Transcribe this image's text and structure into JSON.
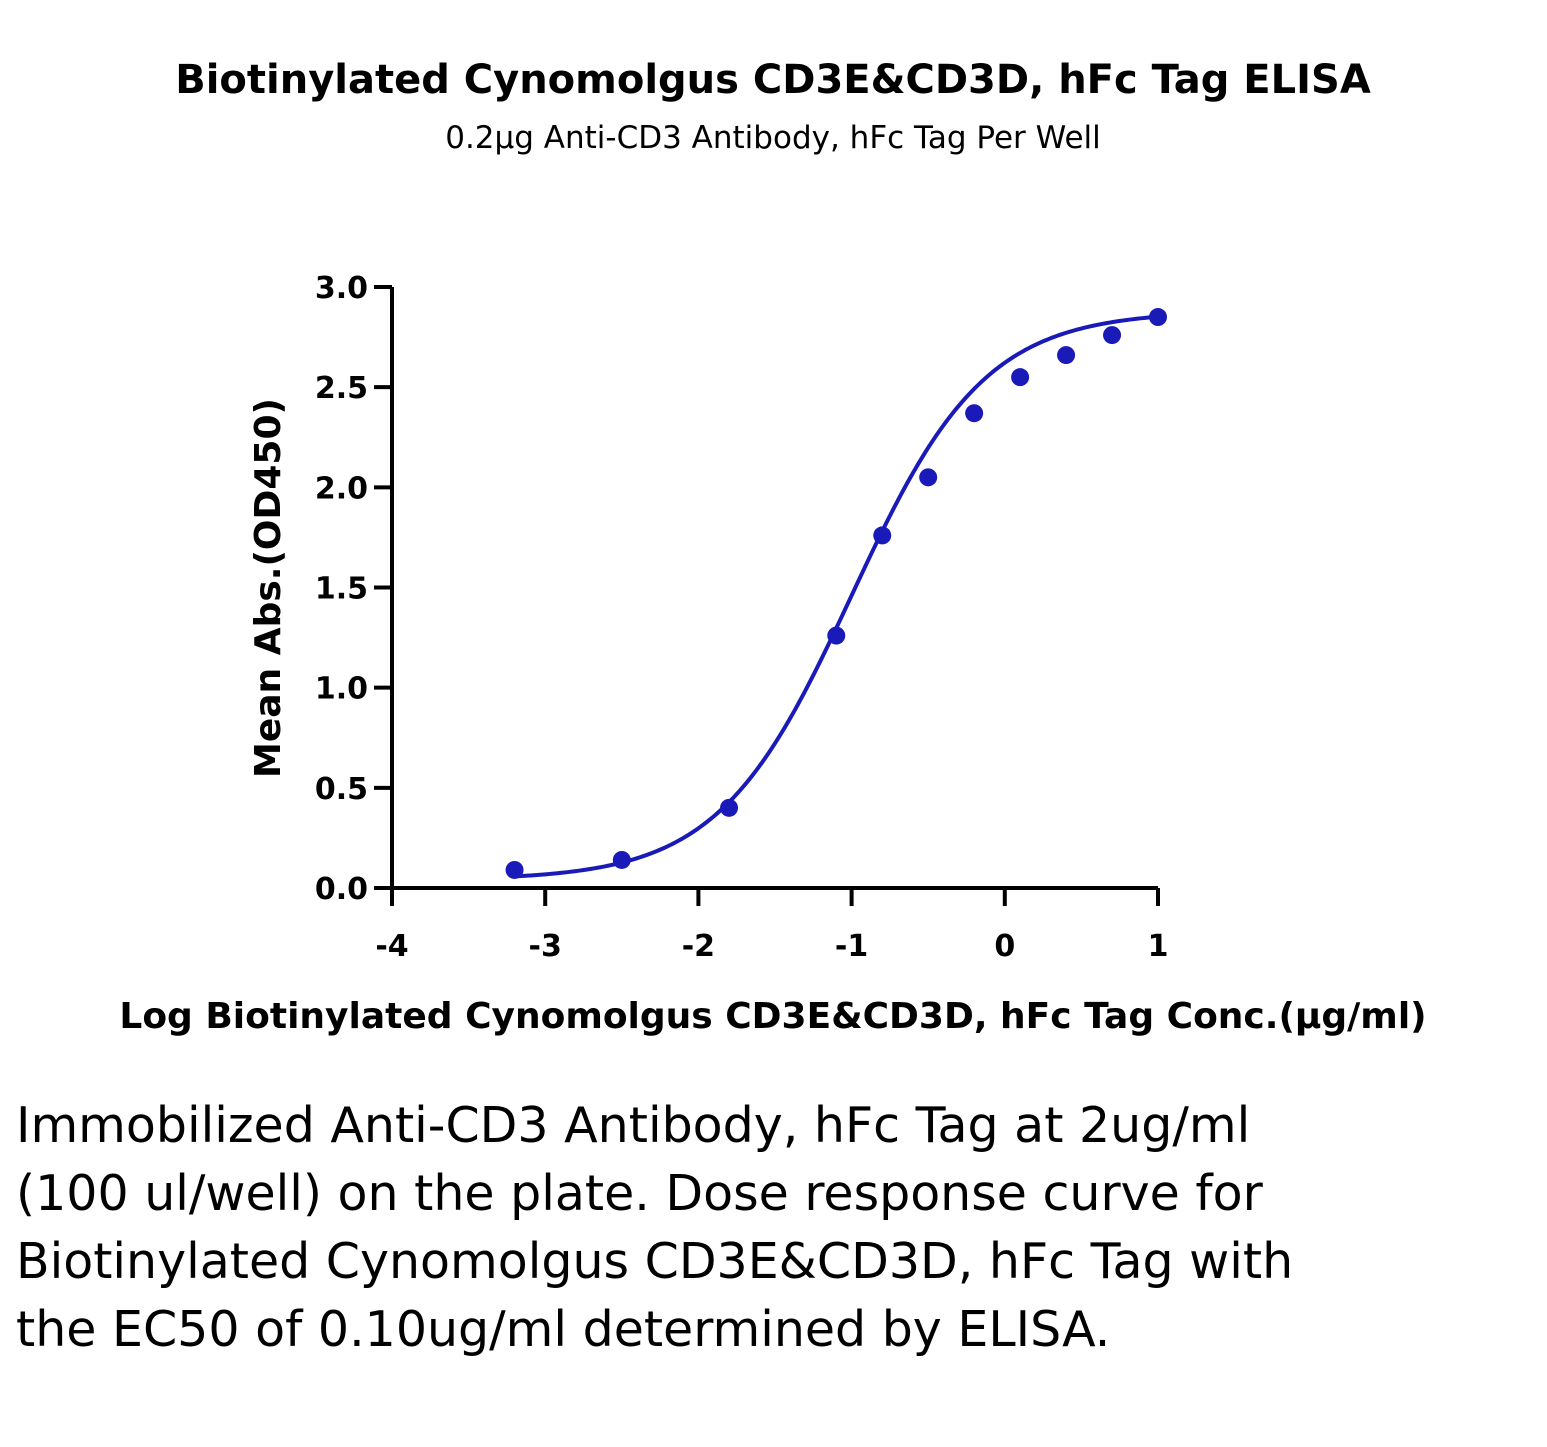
{
  "chart_data": {
    "type": "scatter",
    "title": "Biotinylated Cynomolgus CD3E&CD3D, hFc Tag ELISA",
    "subtitle": "0.2µg Anti-CD3 Antibody, hFc Tag Per Well",
    "xlabel": "Log Biotinylated Cynomolgus CD3E&CD3D, hFc Tag Conc.(µg/ml)",
    "ylabel": "Mean Abs.(OD450)",
    "xlim": [
      -4,
      1
    ],
    "ylim": [
      0,
      3.0
    ],
    "x_ticks": [
      "-4",
      "-3",
      "-2",
      "-1",
      "0",
      "1"
    ],
    "y_ticks": [
      "0.0",
      "0.5",
      "1.0",
      "1.5",
      "2.0",
      "2.5",
      "3.0"
    ],
    "grid": false,
    "series": [
      {
        "color": "#1a1ab8",
        "x": [
          -3.2,
          -2.5,
          -1.8,
          -1.1,
          -0.8,
          -0.5,
          -0.2,
          0.1,
          0.4,
          0.7,
          1.0
        ],
        "y": [
          0.09,
          0.14,
          0.4,
          1.26,
          1.76,
          2.05,
          2.37,
          2.55,
          2.66,
          2.76,
          2.85
        ]
      }
    ],
    "fit_curve": {
      "type": "4PL",
      "bottom": 0.04,
      "top": 2.88,
      "log_ec50": -1.0,
      "hill": 1.0,
      "x_range": [
        -3.2,
        1.0
      ],
      "color": "#1a1ab8"
    }
  },
  "caption": "Immobilized Anti-CD3 Antibody, hFc Tag at 2ug/ml (100 ul/well) on the plate. Dose response curve for Biotinylated Cynomolgus CD3E&CD3D, hFc Tag with the EC50 of 0.10ug/ml determined by ELISA."
}
